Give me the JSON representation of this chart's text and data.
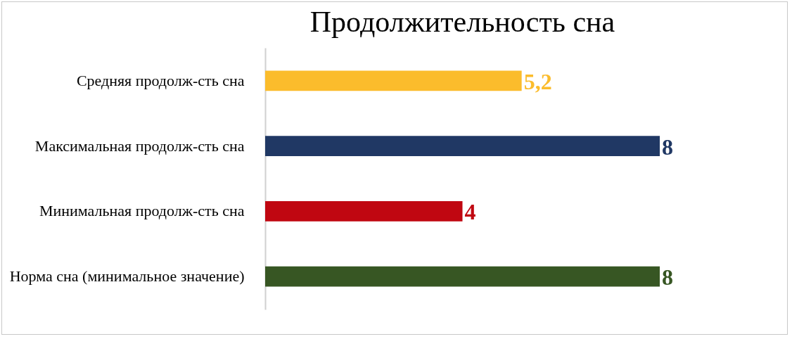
{
  "chart_data": {
    "type": "bar",
    "orientation": "horizontal",
    "title": "Продолжительность сна",
    "categories": [
      "Средняя продолж-сть сна",
      "Максимальная продолж-сть сна",
      "Минимальная продолж-сть сна",
      "Норма сна (минимальное значение)"
    ],
    "values": [
      5.2,
      8,
      4,
      8
    ],
    "colors": [
      "#fbbc2c",
      "#203864",
      "#c00711",
      "#375623"
    ],
    "value_labels": [
      "5,2",
      "8",
      "4",
      "8"
    ],
    "xlim": [
      0,
      8
    ],
    "legend": false
  }
}
